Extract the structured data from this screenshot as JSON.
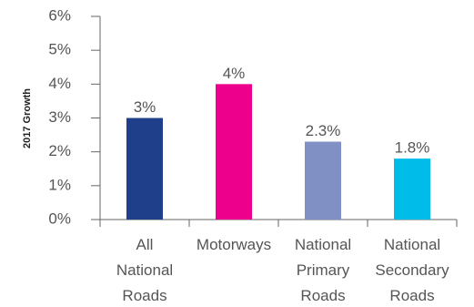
{
  "chart_data": {
    "type": "bar",
    "y_label": "2017 Growth",
    "categories": [
      "All National Roads",
      "Motorways",
      "National Primary Roads",
      "National Secondary Roads"
    ],
    "values": [
      3,
      4,
      2.3,
      1.8
    ],
    "value_labels": [
      "3%",
      "4%",
      "2.3%",
      "1.8%"
    ],
    "colors": [
      "#203f8a",
      "#ec008c",
      "#8090c4",
      "#00bce8"
    ],
    "ylim": [
      0,
      6
    ],
    "yticks": [
      {
        "value": 0,
        "label": "0%"
      },
      {
        "value": 1,
        "label": "1%"
      },
      {
        "value": 2,
        "label": "2%"
      },
      {
        "value": 3,
        "label": "3%"
      },
      {
        "value": 4,
        "label": "4%"
      },
      {
        "value": 5,
        "label": "5%"
      },
      {
        "value": 6,
        "label": "6%"
      }
    ],
    "grid": false
  }
}
